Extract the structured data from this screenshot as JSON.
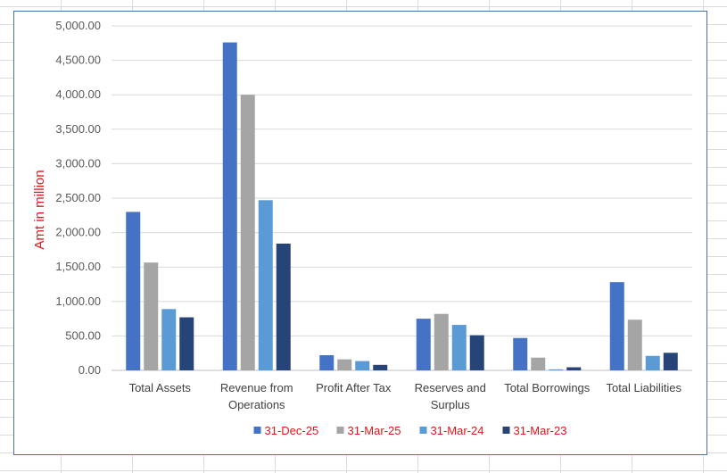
{
  "chart_data": {
    "type": "bar",
    "ylabel": "Amt in million",
    "xlabel": "",
    "ylim": [
      0,
      5000
    ],
    "ytick_step": 500,
    "yticks": [
      "0.00",
      "500.00",
      "1,000.00",
      "1,500.00",
      "2,000.00",
      "2,500.00",
      "3,000.00",
      "3,500.00",
      "4,000.00",
      "4,500.00",
      "5,000.00"
    ],
    "grid": true,
    "legend_position": "bottom",
    "categories": [
      [
        "Total Assets"
      ],
      [
        "Revenue from",
        "Operations"
      ],
      [
        "Profit After Tax"
      ],
      [
        "Reserves and",
        "Surplus"
      ],
      [
        "Total Borrowings"
      ],
      [
        "Total Liabilities"
      ]
    ],
    "series": [
      {
        "name": "31-Dec-25",
        "color": "#4472c4",
        "values": [
          2300,
          4760,
          220,
          750,
          470,
          1280
        ]
      },
      {
        "name": "31-Mar-25",
        "color": "#a5a5a5",
        "values": [
          1565,
          4000,
          160,
          820,
          185,
          735
        ]
      },
      {
        "name": "31-Mar-24",
        "color": "#5b9bd5",
        "values": [
          890,
          2470,
          135,
          660,
          15,
          210
        ]
      },
      {
        "name": "31-Mar-23",
        "color": "#264478",
        "values": [
          770,
          1840,
          80,
          510,
          45,
          255
        ]
      }
    ]
  }
}
